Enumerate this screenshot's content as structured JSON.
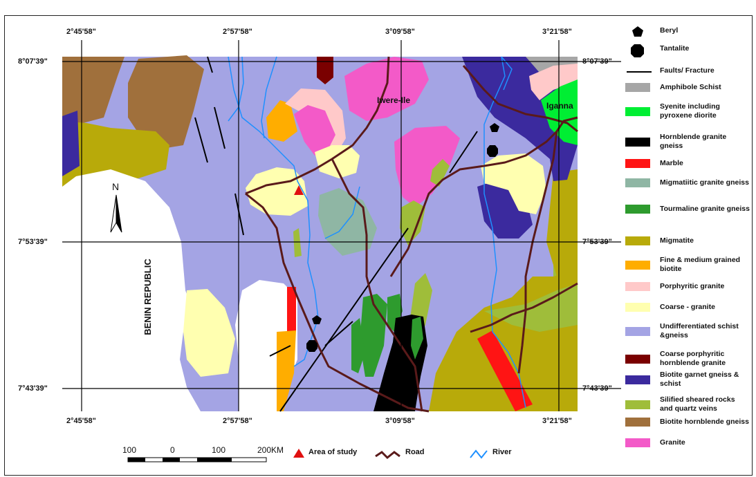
{
  "coords": {
    "top": [
      "2°45'58\"",
      "2°57'58\"",
      "3°09'58\"",
      "3°21'58\""
    ],
    "bottom": [
      "2°45'58\"",
      "2°57'58\"",
      "3°09'58\"",
      "3°21'58\""
    ],
    "left": [
      "8°07'39\"",
      "7°53'39\"",
      "7°43'39\""
    ],
    "right": [
      "8°07'39\"",
      "7°53'39\"",
      "7°43'39\""
    ]
  },
  "places": {
    "iwere_ile": "Iwere-Ile",
    "iganna": "Iganna",
    "benin_republic": "BENIN  REPUBLIC",
    "north": "N"
  },
  "legend": [
    {
      "label": "Beryl",
      "kind": "pentagon"
    },
    {
      "label": "Tantalite",
      "kind": "octagon"
    },
    {
      "label": "Faults/ Fracture",
      "kind": "line"
    },
    {
      "label": "Amphibole Schist",
      "color": "#a6a6a6"
    },
    {
      "label": "Syenite including pyroxene diorite",
      "color": "#00ee33"
    },
    {
      "label": "Hornblende granite gneiss",
      "color": "#000000"
    },
    {
      "label": "Marble",
      "color": "#ff1414"
    },
    {
      "label": "Migmatiitic granite gneiss",
      "color": "#8fb6a4"
    },
    {
      "label": "Tourmaline granite gneiss",
      "color": "#2e9b2e"
    },
    {
      "label": "Migmatite",
      "color": "#b8aa0a"
    },
    {
      "label": "Fine & medium grained biotite",
      "color": "#ffad00"
    },
    {
      "label": "Porphyritic granite",
      "color": "#ffc9c9"
    },
    {
      "label": "Coarse - granite",
      "color": "#ffffb0"
    },
    {
      "label": "Undifferentiated schist &gneiss",
      "color": "#a4a4e4"
    },
    {
      "label": "Coarse porphyritic hornblende granite",
      "color": "#7a0000"
    },
    {
      "label": "Biotite garnet gneiss & schist",
      "color": "#3b2a9e"
    },
    {
      "label": "Silified sheared rocks and quartz veins",
      "color": "#9fbd3a"
    },
    {
      "label": "Biotite hornblende gneiss",
      "color": "#a0703c"
    },
    {
      "label": "Granite",
      "color": "#f35ac8"
    }
  ],
  "scale": {
    "labels": [
      "100",
      "0",
      "100",
      "200KM"
    ]
  },
  "bottom_legend": {
    "study": "Area of study",
    "road": "Road",
    "river": "River"
  },
  "colors": {
    "road": "#5a1a1a",
    "river": "#1e90ff",
    "study": "#e01010"
  }
}
